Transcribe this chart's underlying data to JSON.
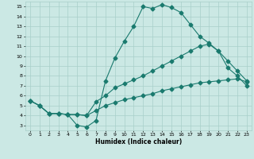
{
  "xlabel": "Humidex (Indice chaleur)",
  "background_color": "#cbe8e4",
  "grid_color": "#a8cfc9",
  "line_color": "#1a7a6e",
  "xlim": [
    -0.5,
    23.5
  ],
  "ylim": [
    2.5,
    15.5
  ],
  "xticks": [
    0,
    1,
    2,
    3,
    4,
    5,
    6,
    7,
    8,
    9,
    10,
    11,
    12,
    13,
    14,
    15,
    16,
    17,
    18,
    19,
    20,
    21,
    22,
    23
  ],
  "yticks": [
    3,
    4,
    5,
    6,
    7,
    8,
    9,
    10,
    11,
    12,
    13,
    14,
    15
  ],
  "curve1_x": [
    0,
    1,
    2,
    3,
    4,
    5,
    6,
    7,
    8,
    9,
    10,
    11,
    12,
    13,
    14,
    15,
    16,
    17,
    18,
    19,
    20,
    21,
    22,
    23
  ],
  "curve1_y": [
    5.5,
    5.0,
    4.2,
    4.2,
    4.1,
    3.0,
    2.85,
    3.5,
    7.5,
    9.8,
    11.5,
    13.0,
    15.0,
    14.8,
    15.2,
    14.9,
    14.4,
    13.2,
    12.0,
    11.3,
    10.5,
    8.8,
    8.0,
    7.0
  ],
  "curve2_x": [
    0,
    1,
    2,
    3,
    4,
    5,
    6,
    7,
    8,
    9,
    10,
    11,
    12,
    13,
    14,
    15,
    16,
    17,
    18,
    19,
    20,
    21,
    22,
    23
  ],
  "curve2_y": [
    5.5,
    5.0,
    4.2,
    4.2,
    4.1,
    4.1,
    4.0,
    5.4,
    6.0,
    6.8,
    7.2,
    7.6,
    8.0,
    8.5,
    9.0,
    9.5,
    10.0,
    10.5,
    11.0,
    11.2,
    10.5,
    9.5,
    8.5,
    7.5
  ],
  "curve3_x": [
    0,
    1,
    2,
    3,
    4,
    5,
    6,
    7,
    8,
    9,
    10,
    11,
    12,
    13,
    14,
    15,
    16,
    17,
    18,
    19,
    20,
    21,
    22,
    23
  ],
  "curve3_y": [
    5.5,
    5.0,
    4.2,
    4.2,
    4.1,
    4.1,
    4.0,
    4.5,
    5.0,
    5.3,
    5.6,
    5.8,
    6.0,
    6.2,
    6.5,
    6.7,
    6.9,
    7.1,
    7.3,
    7.4,
    7.5,
    7.6,
    7.7,
    7.4
  ],
  "markersize": 2.5,
  "linewidth": 0.8
}
